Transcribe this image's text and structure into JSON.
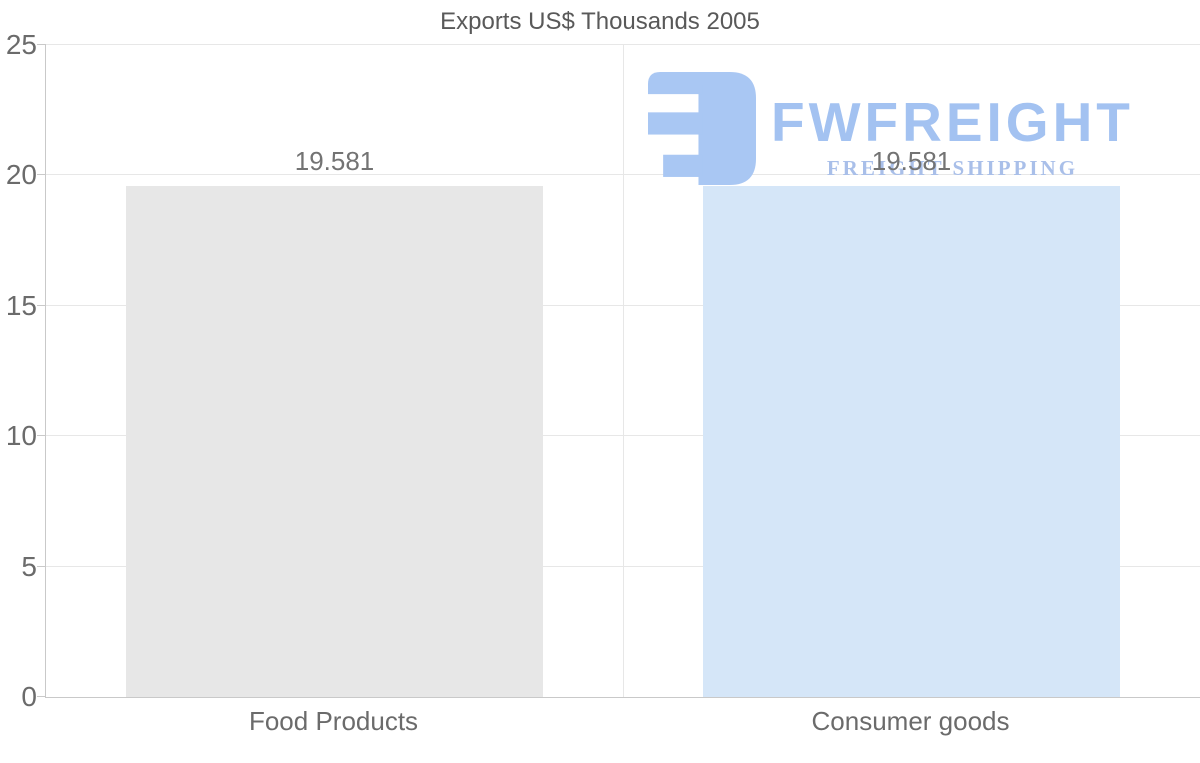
{
  "chart_data": {
    "type": "bar",
    "title": "Exports US$ Thousands 2005",
    "categories": [
      "Food Products",
      "Consumer goods"
    ],
    "values": [
      19.581,
      19.581
    ],
    "data_labels": [
      "19.581",
      "19.581"
    ],
    "bar_colors": [
      "#e7e7e7",
      "#d5e6f8"
    ],
    "ylim": [
      0,
      25
    ],
    "yticks": [
      0,
      5,
      10,
      15,
      20,
      25
    ],
    "xlabel": "",
    "ylabel": "",
    "grid": "horizontal gridlines plus vertical category divider",
    "legend": "none",
    "title_color": "#595959",
    "axis_text_color": "#6b6b6b",
    "data_label_color": "#737373"
  },
  "watermark": {
    "brand": "FWFREIGHT",
    "tagline": "FREIGHT SHIPPING",
    "brand_color": "#a3c2f1",
    "tagline_color": "#a9bfe9",
    "icon_color": "#a9c7f3"
  }
}
